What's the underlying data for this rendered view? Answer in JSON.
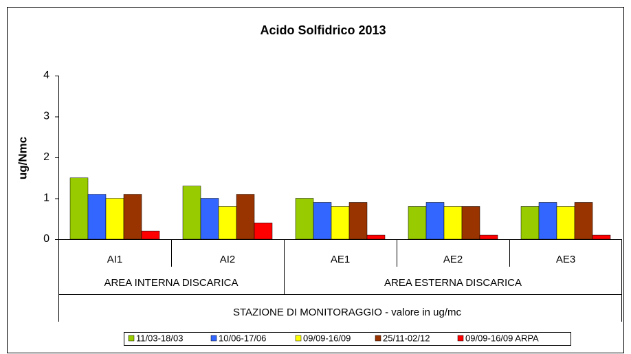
{
  "chart_data": {
    "type": "bar",
    "title": "Acido Solfidrico 2013",
    "y_label": "ug/Nmc",
    "x_label": "STAZIONE DI MONITORAGGIO - valore in ug/mc",
    "categories": [
      "AI1",
      "AI2",
      "AE1",
      "AE2",
      "AE3"
    ],
    "category_groups": [
      "AREA INTERNA DISCARICA",
      "AREA INTERNA DISCARICA",
      "AREA ESTERNA DISCARICA",
      "AREA ESTERNA DISCARICA",
      "AREA ESTERNA DISCARICA"
    ],
    "series": [
      {
        "name": "11/03-18/03",
        "color": "#99cc00",
        "values": [
          1.5,
          1.3,
          1.0,
          0.8,
          0.8
        ]
      },
      {
        "name": "10/06-17/06",
        "color": "#3366ff",
        "values": [
          1.1,
          1.0,
          0.9,
          0.9,
          0.9
        ]
      },
      {
        "name": "09/09-16/09",
        "color": "#ffff00",
        "values": [
          1.0,
          0.8,
          0.8,
          0.8,
          0.8
        ]
      },
      {
        "name": "25/11-02/12",
        "color": "#993300",
        "values": [
          1.1,
          1.1,
          0.9,
          0.8,
          0.9
        ]
      },
      {
        "name": "09/09-16/09 ARPA",
        "color": "#ff0000",
        "values": [
          0.2,
          0.4,
          0.1,
          0.1,
          0.1
        ]
      }
    ],
    "ylim": [
      0,
      4
    ],
    "yticks": [
      0,
      1,
      2,
      3,
      4
    ],
    "grid": false,
    "legend": "bottom"
  }
}
